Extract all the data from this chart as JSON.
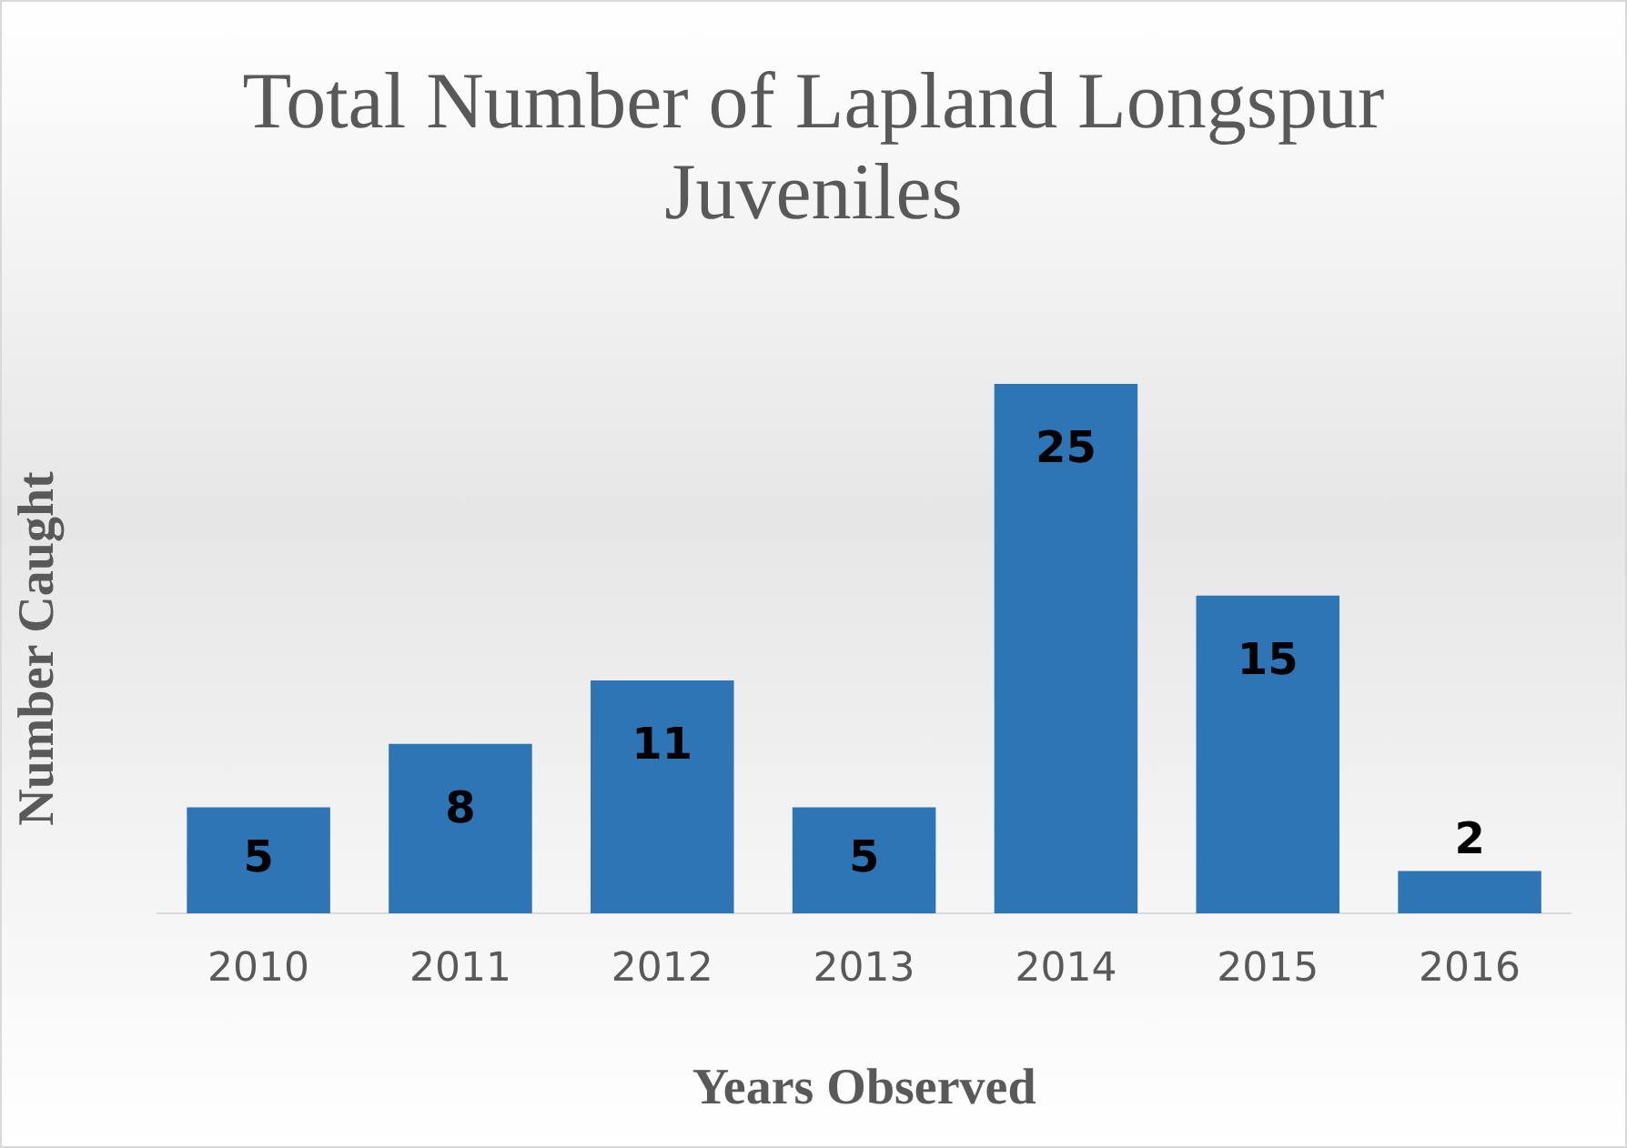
{
  "chart_data": {
    "type": "bar",
    "title": "Total Number of Lapland Longspur Juveniles",
    "xlabel": "Years Observed",
    "ylabel": "Number Caught",
    "categories": [
      "2010",
      "2011",
      "2012",
      "2013",
      "2014",
      "2015",
      "2016"
    ],
    "values": [
      5,
      8,
      11,
      5,
      25,
      15,
      2
    ],
    "color": "#2e75b6",
    "data_labels": true,
    "grid": false,
    "legend": false
  }
}
